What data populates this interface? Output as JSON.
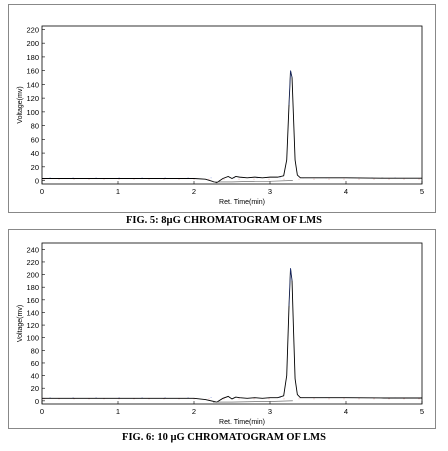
{
  "figures": [
    {
      "caption": "FIG. 5: 8µG CHROMATOGRAM OF LMS"
    },
    {
      "caption": "FIG. 6: 10 µG CHROMATOGRAM OF LMS"
    }
  ],
  "colors": {
    "trace": "#000000",
    "baseline_red": "#d04040",
    "baseline_blue": "#3050c0"
  },
  "chart_data": [
    {
      "type": "line",
      "xlabel": "Ret. Time(min)",
      "ylabel": "Voltage(mv)",
      "xlim": [
        0,
        5
      ],
      "ylim": [
        -5,
        225
      ],
      "x_ticks": [
        "0",
        "1",
        "2",
        "3",
        "4",
        "5"
      ],
      "y_ticks": [
        "0",
        "20",
        "40",
        "60",
        "80",
        "100",
        "120",
        "140",
        "160",
        "180",
        "200",
        "220"
      ],
      "series": [
        {
          "x": [
            0,
            0.5,
            1.0,
            1.5,
            2.0,
            2.15,
            2.3,
            2.38,
            2.45,
            2.5,
            2.55,
            2.6,
            2.7,
            2.8,
            2.9,
            3.0,
            3.1,
            3.18,
            3.22,
            3.25,
            3.27,
            3.29,
            3.31,
            3.33,
            3.36,
            3.4,
            3.5,
            4.0,
            4.5,
            5.0
          ],
          "y": [
            3,
            3,
            3,
            3,
            3,
            2,
            -3,
            3,
            6,
            3,
            6,
            5,
            4,
            5,
            4,
            5,
            5,
            7,
            30,
            110,
            160,
            150,
            90,
            30,
            8,
            4,
            4,
            4,
            3.5,
            3.5
          ]
        },
        {
          "x": [
            2.25,
            2.5,
            2.7,
            3.0,
            3.3
          ],
          "y": [
            -2,
            -2,
            -1.5,
            -1,
            0
          ]
        }
      ]
    },
    {
      "type": "line",
      "xlabel": "Ret. Time(min)",
      "ylabel": "Voltage(mv)",
      "xlim": [
        0,
        5
      ],
      "ylim": [
        -5,
        250
      ],
      "x_ticks": [
        "0",
        "1",
        "2",
        "3",
        "4",
        "5"
      ],
      "y_ticks": [
        "0",
        "20",
        "40",
        "60",
        "80",
        "100",
        "120",
        "140",
        "160",
        "180",
        "200",
        "220",
        "240"
      ],
      "series": [
        {
          "x": [
            0,
            0.5,
            1.0,
            1.5,
            2.0,
            2.15,
            2.3,
            2.38,
            2.45,
            2.5,
            2.55,
            2.6,
            2.7,
            2.8,
            2.9,
            3.0,
            3.1,
            3.18,
            3.22,
            3.25,
            3.27,
            3.29,
            3.31,
            3.33,
            3.36,
            3.4,
            3.5,
            4.0,
            4.5,
            5.0
          ],
          "y": [
            4,
            4,
            4,
            4,
            4,
            2,
            -2,
            4,
            7,
            3,
            6,
            5,
            4,
            5,
            4,
            5,
            5,
            8,
            40,
            150,
            210,
            190,
            110,
            35,
            10,
            5,
            5,
            5,
            4.5,
            4.5
          ]
        },
        {
          "x": [
            2.25,
            2.5,
            2.7,
            3.0,
            3.3
          ],
          "y": [
            -2,
            -2,
            -1.5,
            -1,
            0
          ]
        }
      ]
    }
  ]
}
